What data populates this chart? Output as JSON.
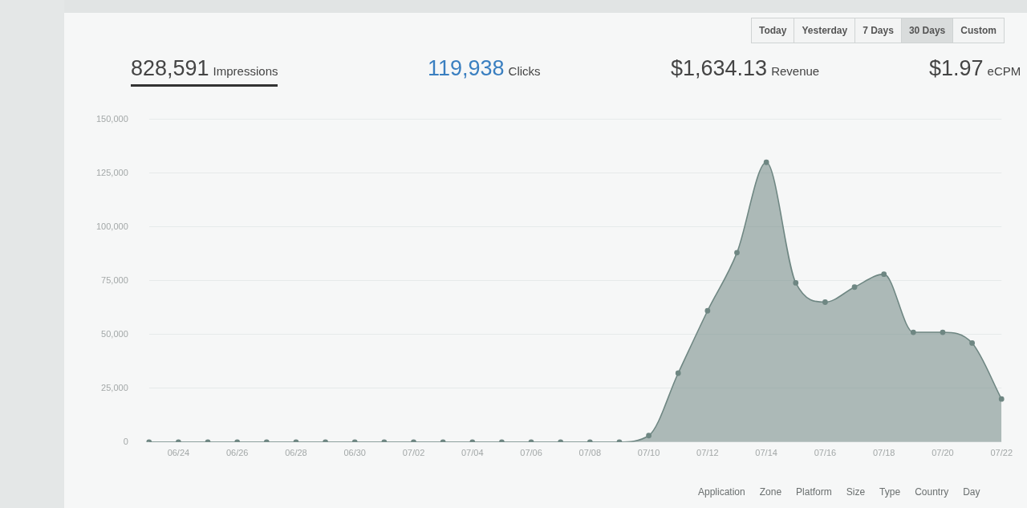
{
  "chart_data": {
    "type": "area",
    "categories": [
      null,
      "06/24",
      null,
      "06/26",
      null,
      "06/28",
      null,
      "06/30",
      null,
      "07/02",
      null,
      "07/04",
      null,
      "07/06",
      null,
      "07/08",
      null,
      "07/10",
      null,
      "07/12",
      null,
      "07/14",
      null,
      "07/16",
      null,
      "07/18",
      null,
      "07/20",
      null,
      "07/22"
    ],
    "values": [
      0,
      0,
      0,
      0,
      0,
      0,
      0,
      0,
      0,
      0,
      0,
      0,
      0,
      0,
      0,
      0,
      0,
      3000,
      32000,
      61000,
      88000,
      130000,
      74000,
      65000,
      72000,
      78000,
      51000,
      51000,
      46000,
      20000
    ],
    "color": "#6f8783",
    "ylim": [
      0,
      150000
    ],
    "yticks": [
      0,
      {
        "value": 25000,
        "label": "25,000"
      },
      {
        "value": 50000,
        "label": "50,000"
      },
      {
        "value": 75000,
        "label": "75,000"
      },
      {
        "value": 100000,
        "label": "100,000"
      },
      {
        "value": 125000,
        "label": "125,000"
      },
      {
        "value": 150000,
        "label": "150,000"
      }
    ],
    "grid": "y",
    "marker": "circle",
    "annotations": [
      "Today",
      "Yesterday",
      "7 Days",
      "30 Days",
      "Custom",
      "828,591",
      "Impressions",
      "119,938",
      "Clicks",
      "$1,634.13",
      "Revenue",
      "$1.97",
      "eCPM",
      "Application",
      "Zone",
      "Platform",
      "Size",
      "Type",
      "Country",
      "Day"
    ]
  }
}
